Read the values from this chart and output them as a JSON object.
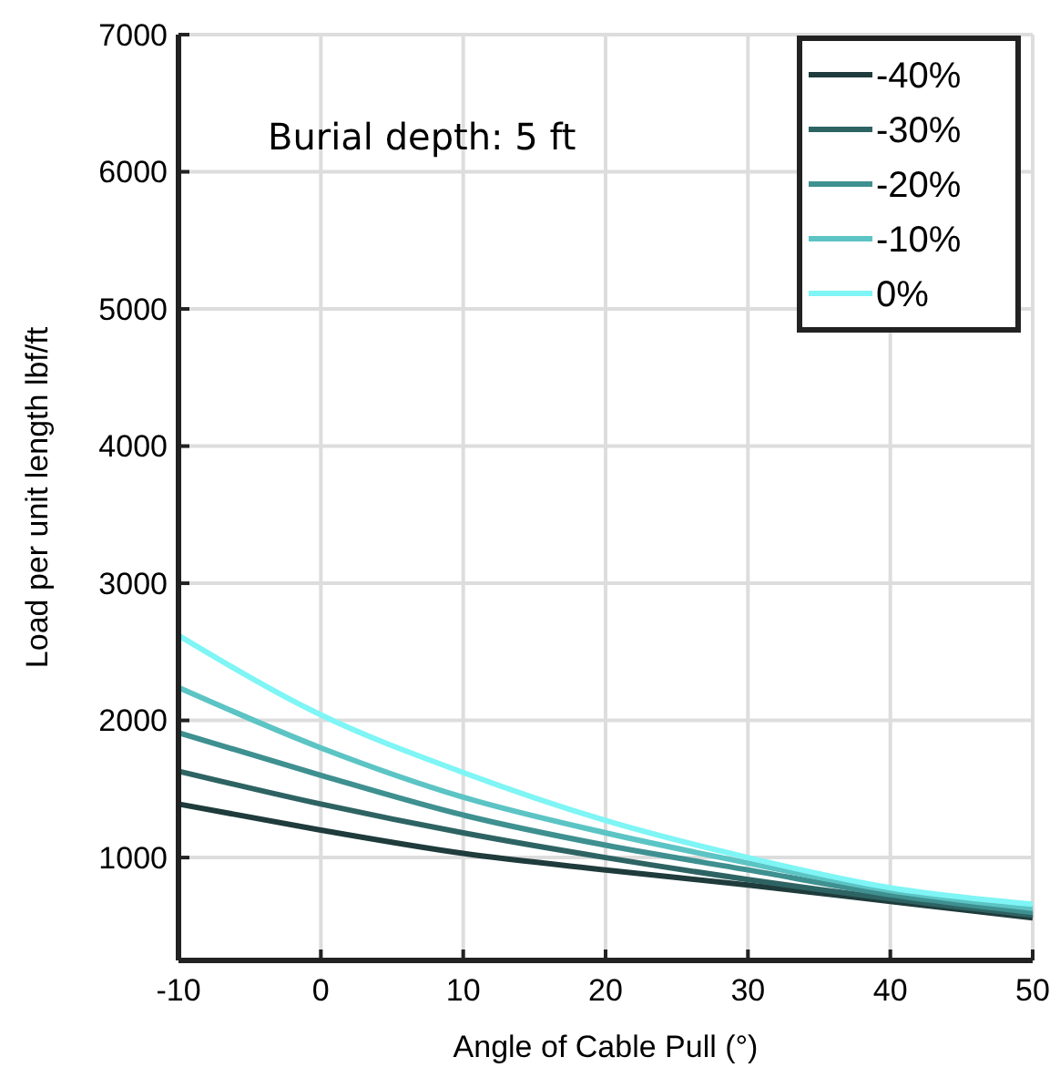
{
  "chart_data": {
    "type": "line",
    "xlabel": "Angle of Cable Pull (°)",
    "ylabel": "Load per unit length lbf/ft",
    "annotations": [
      "Burial depth: 5 ft"
    ],
    "x": [
      -10,
      0,
      10,
      20,
      30,
      40,
      50
    ],
    "series": [
      {
        "name": "-40%",
        "color": "#1f3b3b",
        "values": [
          1390,
          1200,
          1030,
          910,
          800,
          680,
          560
        ]
      },
      {
        "name": "-30%",
        "color": "#2e6363",
        "values": [
          1630,
          1390,
          1180,
          1000,
          840,
          700,
          580
        ]
      },
      {
        "name": "-20%",
        "color": "#3f9090",
        "values": [
          1910,
          1600,
          1310,
          1090,
          910,
          730,
          600
        ]
      },
      {
        "name": "-10%",
        "color": "#5cc4c4",
        "values": [
          2240,
          1800,
          1440,
          1180,
          960,
          760,
          630
        ]
      },
      {
        "name": "0%",
        "color": "#7ff5f5",
        "values": [
          2620,
          2040,
          1620,
          1270,
          1000,
          780,
          660
        ]
      }
    ],
    "xlim": [
      -10,
      50
    ],
    "xticks": [
      -10,
      0,
      10,
      20,
      30,
      40,
      50
    ],
    "ylim": [
      250,
      7000
    ],
    "yticks": [
      1000,
      2000,
      3000,
      4000,
      5000,
      6000,
      7000
    ],
    "grid": true,
    "legend": "top right",
    "marker": "none",
    "line_style": "solid"
  }
}
